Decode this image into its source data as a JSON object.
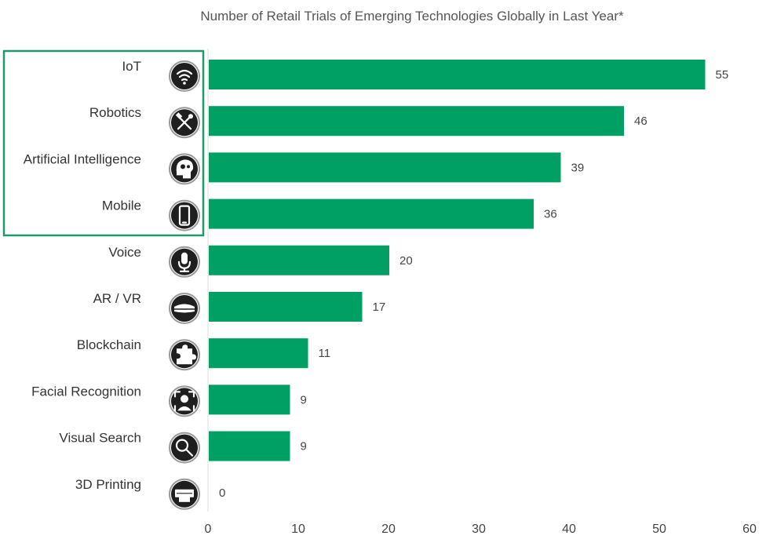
{
  "chart_data": {
    "type": "bar",
    "orientation": "horizontal",
    "title": "Number of Retail Trials of Emerging Technologies Globally in Last Year*",
    "categories": [
      "IoT",
      "Robotics",
      "Artificial Intelligence",
      "Mobile",
      "Voice",
      "AR / VR",
      "Blockchain",
      "Facial Recognition",
      "Visual Search",
      "3D Printing"
    ],
    "values": [
      55,
      46,
      39,
      36,
      20,
      17,
      11,
      9,
      9,
      0
    ],
    "icons": [
      "wifi-icon",
      "tools-icon",
      "brain-gears-icon",
      "smartphone-icon",
      "microphone-icon",
      "vr-headset-icon",
      "puzzle-icon",
      "face-scan-icon",
      "magnifier-icon",
      "printer-icon"
    ],
    "highlighted": [
      "IoT",
      "Robotics",
      "Artificial Intelligence",
      "Mobile"
    ],
    "xlim": [
      0,
      60
    ],
    "xticks": [
      0,
      10,
      20,
      30,
      40,
      50,
      60
    ],
    "grid": false,
    "colors": {
      "bar": "#00a064",
      "highlight_border": "#1c9a6a"
    }
  }
}
